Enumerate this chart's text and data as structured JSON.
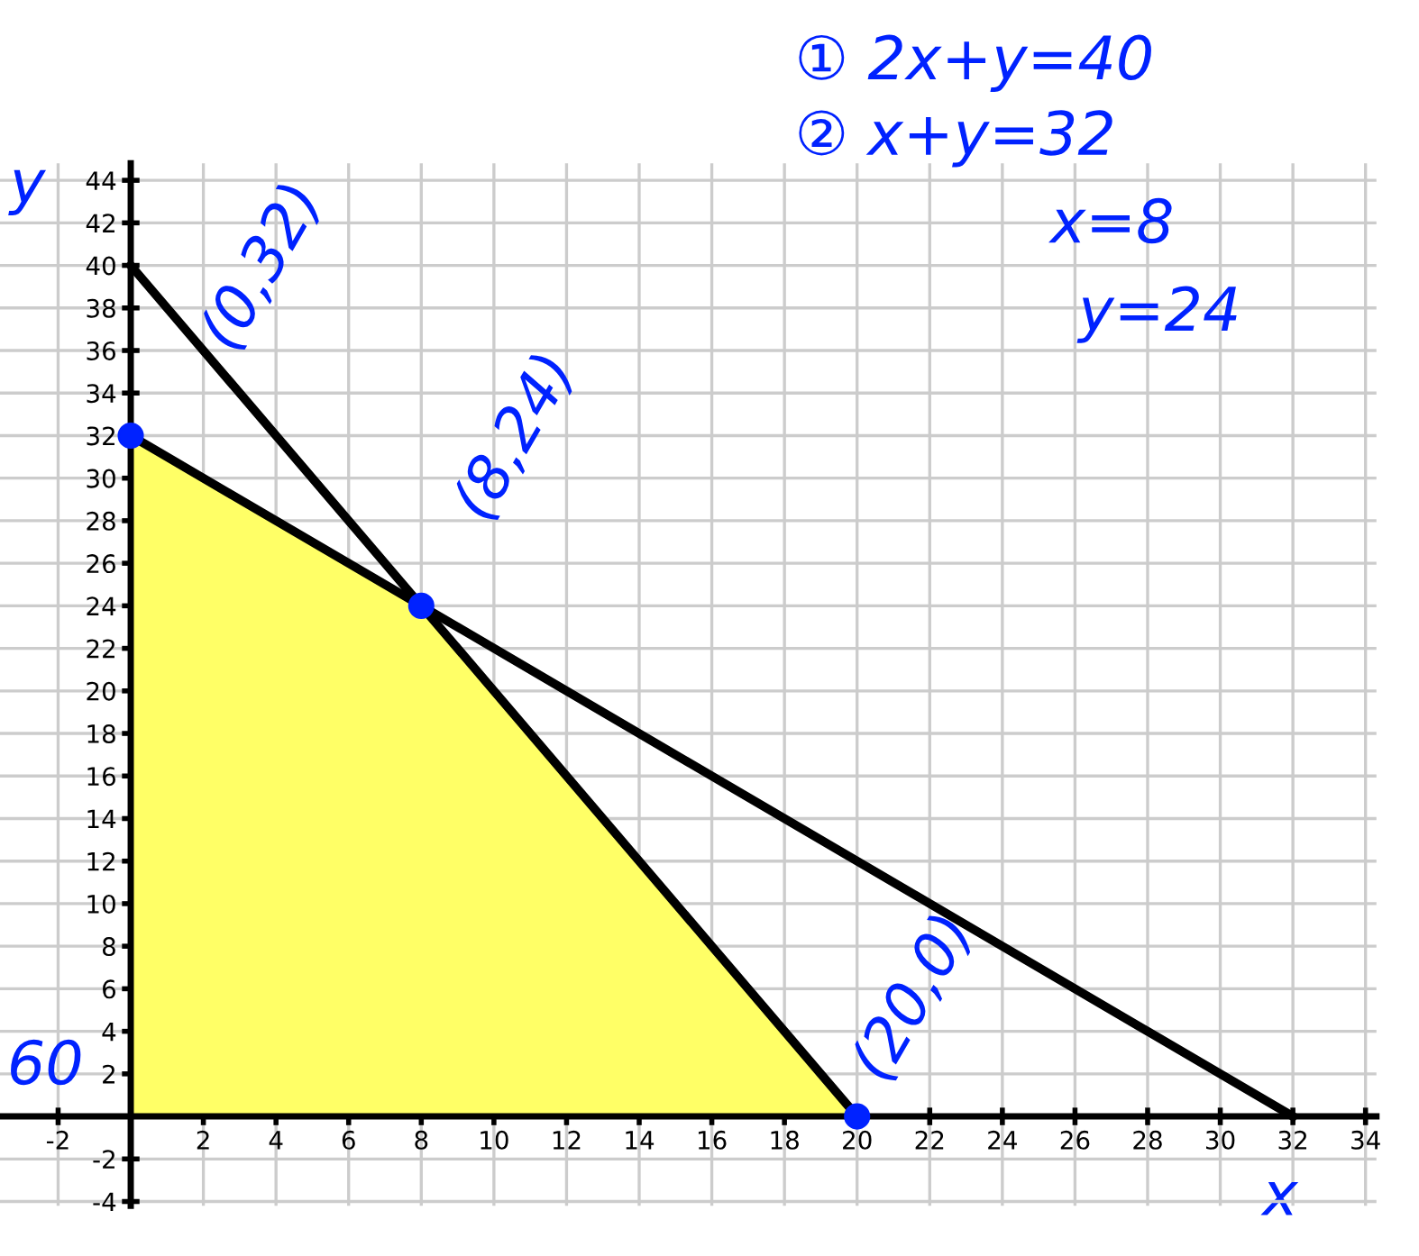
{
  "chart_data": {
    "type": "line",
    "xlabel": "x",
    "ylabel": "y",
    "xlim": [
      -3.6,
      34.3
    ],
    "ylim": [
      -4.2,
      44.8
    ],
    "xticks": [
      -2,
      2,
      4,
      6,
      8,
      10,
      12,
      14,
      16,
      18,
      20,
      22,
      24,
      26,
      28,
      30,
      32,
      34
    ],
    "yticks": [
      -4,
      -2,
      2,
      4,
      6,
      8,
      10,
      12,
      14,
      16,
      18,
      20,
      22,
      24,
      26,
      28,
      30,
      32,
      34,
      36,
      38,
      40,
      42,
      44
    ],
    "grid": true,
    "series": [
      {
        "type": "area",
        "color": "#ffff66",
        "x": [
          0,
          8,
          20
        ],
        "values": [
          32,
          24,
          0
        ]
      },
      {
        "color": "#000000",
        "x": [
          0,
          20
        ],
        "values": [
          40,
          0
        ]
      },
      {
        "color": "#000000",
        "x": [
          0,
          32
        ],
        "values": [
          32,
          0
        ]
      },
      {
        "type": "scatter",
        "color": "#0022ff",
        "marker": "circle",
        "x": [
          0,
          8,
          20
        ],
        "values": [
          32,
          24,
          0
        ]
      }
    ],
    "annotations": [
      {
        "text": "(0,32)",
        "x": 0,
        "y": 32
      },
      {
        "text": "(8,24)",
        "x": 8,
        "y": 24
      },
      {
        "text": "(20,0)",
        "x": 20,
        "y": 0
      },
      "① 2x+y=40",
      "② x+y=32",
      "x=8",
      "y=24",
      "60"
    ]
  }
}
